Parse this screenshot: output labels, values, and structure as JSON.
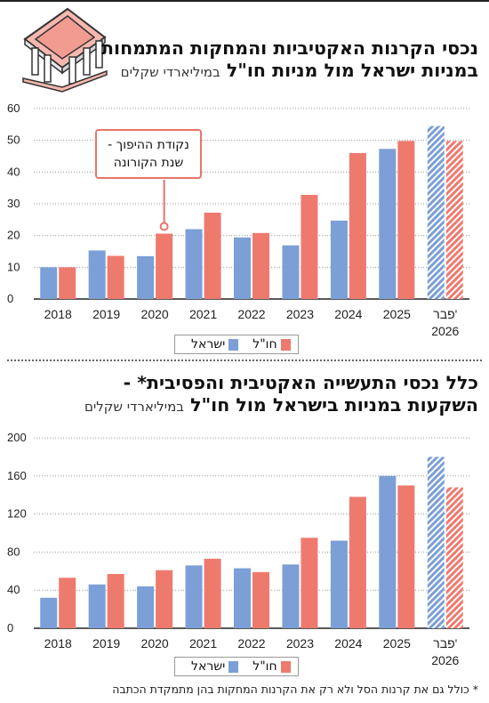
{
  "colors": {
    "israel": "#7B9FD6",
    "abroad": "#EE7A6E",
    "text": "#111111"
  },
  "chart1": {
    "title": "נכסי הקרנות האקטיביות והמחקות המתמחות במניות ישראל מול מניות חו\"ל",
    "subtitle": "במיליארדי שקלים",
    "annotation_line1": "נקודת ההיפוך -",
    "annotation_line2": "שנת הקורונה",
    "legend": {
      "israel": "ישראל",
      "abroad": "חו\"ל"
    }
  },
  "chart2": {
    "title_line1": "כלל נכסי התעשייה האקטיבית והפסיבית* -",
    "title_line2": "השקעות במניות בישראל מול חו\"ל",
    "subtitle": "במיליארדי שקלים",
    "legend": {
      "israel": "ישראל",
      "abroad": "חו\"ל"
    }
  },
  "footnote": "* כולל גם את קרנות הסל ולא רק את הקרנות המחקות בהן מתמקדת הכתבה",
  "chart_data": [
    {
      "type": "bar",
      "title": "נכסי הקרנות האקטיביות והמחקות המתמחות במניות ישראל מול מניות חו\"ל",
      "subtitle": "במיליארדי שקלים",
      "categories": [
        "2018",
        "2019",
        "2020",
        "2021",
        "2022",
        "2023",
        "2024",
        "2025",
        "פבר' 2026"
      ],
      "series": [
        {
          "name": "ישראל",
          "values": [
            10,
            15.3,
            13.5,
            22,
            19.4,
            16.9,
            24.7,
            47.3,
            54.5
          ]
        },
        {
          "name": "חו\"ל",
          "values": [
            10,
            13.6,
            20.6,
            27.2,
            20.8,
            32.8,
            46,
            49.8,
            49.8
          ]
        }
      ],
      "ylim": [
        0,
        60
      ],
      "yticks": [
        0,
        10,
        20,
        30,
        40,
        50,
        60
      ],
      "grid": true,
      "last_category_hatched": true,
      "legend_position": "bottom-center"
    },
    {
      "type": "bar",
      "title": "כלל נכסי התעשייה האקטיבית והפסיבית* - השקעות במניות בישראל מול חו\"ל",
      "subtitle": "במיליארדי שקלים",
      "categories": [
        "2018",
        "2019",
        "2020",
        "2021",
        "2022",
        "2023",
        "2024",
        "2025",
        "פבר' 2026"
      ],
      "series": [
        {
          "name": "ישראל",
          "values": [
            32,
            46,
            44,
            66,
            63,
            67,
            92,
            160,
            180
          ]
        },
        {
          "name": "חו\"ל",
          "values": [
            53,
            57,
            61,
            73,
            59,
            95,
            138,
            150,
            148
          ]
        }
      ],
      "ylim": [
        0,
        200
      ],
      "yticks": [
        0,
        40,
        80,
        120,
        160,
        200
      ],
      "grid": true,
      "last_category_hatched": true,
      "legend_position": "bottom-center"
    }
  ]
}
